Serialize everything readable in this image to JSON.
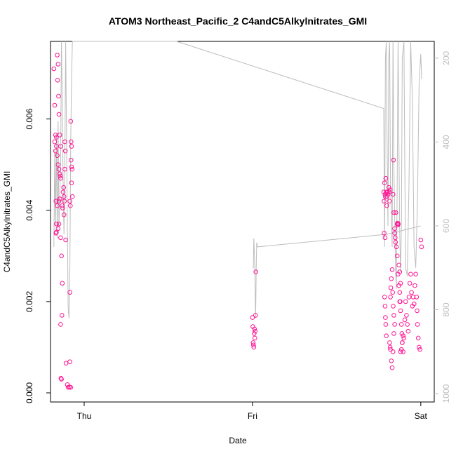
{
  "chart_data": {
    "type": "scatter",
    "title": "ATOM3 Northeast_Pacific_2 C4andC5Alkylnitrates_GMI",
    "xlabel": "Date",
    "ylabel": "C4andC5Alkylnitrates_GMI",
    "x_unit": "days from Thursday 00:00",
    "xlim": [
      -0.2,
      2.08
    ],
    "ylim": [
      -0.0002,
      0.0077
    ],
    "x_ticks": [
      {
        "value": 0,
        "label": "Thu"
      },
      {
        "value": 1,
        "label": "Fri"
      },
      {
        "value": 2,
        "label": "Sat"
      }
    ],
    "y_ticks": [
      {
        "value": 0,
        "label": "0.000"
      },
      {
        "value": 0.002,
        "label": "0.002"
      },
      {
        "value": 0.004,
        "label": "0.004"
      },
      {
        "value": 0.006,
        "label": "0.006"
      }
    ],
    "y2_ticks": [
      {
        "value": 200,
        "label": "200"
      },
      {
        "value": 400,
        "label": "400"
      },
      {
        "value": 600,
        "label": "600"
      },
      {
        "value": 800,
        "label": "800"
      },
      {
        "value": 1000,
        "label": "1000"
      }
    ],
    "y2lim_top_to_bottom": [
      160,
      1020
    ],
    "grid": false,
    "colors": {
      "points": "#ff1493",
      "pressure_line": "#bdbdbd",
      "axes": "#000000"
    },
    "series": [
      {
        "kind": "points",
        "points": [
          [
            -0.18,
            0.0071
          ],
          [
            -0.175,
            0.0063
          ],
          [
            -0.17,
            0.00565
          ],
          [
            -0.175,
            0.0055
          ],
          [
            -0.17,
            0.0053
          ],
          [
            -0.165,
            0.0056
          ],
          [
            -0.16,
            0.0074
          ],
          [
            -0.158,
            0.00685
          ],
          [
            -0.155,
            0.0072
          ],
          [
            -0.152,
            0.0065
          ],
          [
            -0.15,
            0.0061
          ],
          [
            -0.165,
            0.0054
          ],
          [
            -0.16,
            0.0052
          ],
          [
            -0.155,
            0.005
          ],
          [
            -0.15,
            0.0049
          ],
          [
            -0.145,
            0.0048
          ],
          [
            -0.142,
            0.00475
          ],
          [
            -0.14,
            0.0047
          ],
          [
            -0.145,
            0.00565
          ],
          [
            -0.14,
            0.0054
          ],
          [
            -0.168,
            0.0042
          ],
          [
            -0.16,
            0.0041
          ],
          [
            -0.15,
            0.0042
          ],
          [
            -0.145,
            0.00425
          ],
          [
            -0.165,
            0.0037
          ],
          [
            -0.168,
            0.0035
          ],
          [
            -0.165,
            0.00352
          ],
          [
            -0.155,
            0.0036
          ],
          [
            -0.15,
            0.0037
          ],
          [
            -0.14,
            0.0034
          ],
          [
            -0.135,
            0.003
          ],
          [
            -0.13,
            0.0024
          ],
          [
            -0.14,
            0.0015
          ],
          [
            -0.132,
            0.0017
          ],
          [
            -0.138,
            0.00032
          ],
          [
            -0.135,
            0.0003
          ],
          [
            -0.13,
            0.0041
          ],
          [
            -0.128,
            0.00405
          ],
          [
            -0.125,
            0.0044
          ],
          [
            -0.122,
            0.0045
          ],
          [
            -0.12,
            0.0043
          ],
          [
            -0.118,
            0.0042
          ],
          [
            -0.12,
            0.0039
          ],
          [
            -0.115,
            0.0055
          ],
          [
            -0.112,
            0.0053
          ],
          [
            -0.115,
            0.0049
          ],
          [
            -0.11,
            0.00335
          ],
          [
            -0.108,
            0.00065
          ],
          [
            -0.1,
            0.00018
          ],
          [
            -0.095,
            0.00012
          ],
          [
            -0.088,
            0.00013
          ],
          [
            -0.08,
            0.00012
          ],
          [
            -0.085,
            0.00068
          ],
          [
            -0.085,
            0.0022
          ],
          [
            -0.085,
            0.0042
          ],
          [
            -0.082,
            0.0041
          ],
          [
            -0.08,
            0.00595
          ],
          [
            -0.078,
            0.0055
          ],
          [
            -0.075,
            0.0054
          ],
          [
            -0.078,
            0.0051
          ],
          [
            -0.075,
            0.00495
          ],
          [
            -0.072,
            0.0049
          ],
          [
            -0.075,
            0.0046
          ],
          [
            -0.07,
            0.0043
          ],
          [
            1.0,
            0.00165
          ],
          [
            1.002,
            0.00145
          ],
          [
            1.004,
            0.0011
          ],
          [
            1.006,
            0.00105
          ],
          [
            1.008,
            0.001
          ],
          [
            1.01,
            0.0013
          ],
          [
            1.012,
            0.0014
          ],
          [
            1.014,
            0.0012
          ],
          [
            1.016,
            0.00135
          ],
          [
            1.018,
            0.0017
          ],
          [
            1.02,
            0.00265
          ],
          [
            1.78,
            0.0044
          ],
          [
            1.782,
            0.0042
          ],
          [
            1.785,
            0.0046
          ],
          [
            1.788,
            0.00435
          ],
          [
            1.79,
            0.0043
          ],
          [
            1.792,
            0.0047
          ],
          [
            1.795,
            0.0044
          ],
          [
            1.798,
            0.0041
          ],
          [
            1.8,
            0.0043
          ],
          [
            1.802,
            0.0044
          ],
          [
            1.805,
            0.00435
          ],
          [
            1.81,
            0.0045
          ],
          [
            1.812,
            0.0044
          ],
          [
            1.815,
            0.0042
          ],
          [
            1.818,
            0.00445
          ],
          [
            1.782,
            0.0035
          ],
          [
            1.788,
            0.0034
          ],
          [
            1.785,
            0.0021
          ],
          [
            1.788,
            0.0019
          ],
          [
            1.79,
            0.00165
          ],
          [
            1.792,
            0.0015
          ],
          [
            1.795,
            0.00125
          ],
          [
            1.815,
            0.0011
          ],
          [
            1.818,
            0.001
          ],
          [
            1.82,
            0.00095
          ],
          [
            1.825,
            0.0007
          ],
          [
            1.83,
            0.00055
          ],
          [
            1.835,
            0.0009
          ],
          [
            1.84,
            0.0013
          ],
          [
            1.845,
            0.0015
          ],
          [
            1.82,
            0.0021
          ],
          [
            1.822,
            0.0023
          ],
          [
            1.825,
            0.0025
          ],
          [
            1.83,
            0.0027
          ],
          [
            1.833,
            0.0022
          ],
          [
            1.836,
            0.0019
          ],
          [
            1.84,
            0.0017
          ],
          [
            1.835,
            0.00435
          ],
          [
            1.838,
            0.0051
          ],
          [
            1.84,
            0.00395
          ],
          [
            1.845,
            0.0035
          ],
          [
            1.848,
            0.0034
          ],
          [
            1.852,
            0.00395
          ],
          [
            1.855,
            0.0032
          ],
          [
            1.86,
            0.003
          ],
          [
            1.865,
            0.0026
          ],
          [
            1.87,
            0.00235
          ],
          [
            1.875,
            0.0022
          ],
          [
            1.878,
            0.002
          ],
          [
            1.88,
            0.0018
          ],
          [
            1.885,
            0.0015
          ],
          [
            1.888,
            0.0013
          ],
          [
            1.89,
            0.0011
          ],
          [
            1.895,
            0.0009
          ],
          [
            1.9,
            0.0012
          ],
          [
            1.905,
            0.0016
          ],
          [
            1.91,
            0.002
          ],
          [
            1.915,
            0.0017
          ],
          [
            1.92,
            0.0015
          ],
          [
            1.925,
            0.00135
          ],
          [
            1.93,
            0.0021
          ],
          [
            1.935,
            0.0024
          ],
          [
            1.94,
            0.0026
          ],
          [
            1.945,
            0.0022
          ],
          [
            1.95,
            0.0019
          ],
          [
            1.955,
            0.0021
          ],
          [
            1.96,
            0.00195
          ],
          [
            1.965,
            0.00235
          ],
          [
            1.97,
            0.0026
          ],
          [
            1.975,
            0.0021
          ],
          [
            1.978,
            0.0018
          ],
          [
            1.98,
            0.0015
          ],
          [
            1.985,
            0.0012
          ],
          [
            1.99,
            0.001
          ],
          [
            1.995,
            0.00095
          ],
          [
            2.0,
            0.00335
          ],
          [
            2.005,
            0.0032
          ],
          [
            1.86,
            0.0037
          ],
          [
            1.862,
            0.00372
          ],
          [
            1.864,
            0.00368
          ],
          [
            1.866,
            0.0037
          ],
          [
            1.845,
            0.0036
          ],
          [
            1.85,
            0.0033
          ],
          [
            1.87,
            0.0028
          ],
          [
            1.875,
            0.00265
          ],
          [
            1.88,
            0.0009
          ],
          [
            1.885,
            0.00095
          ],
          [
            1.89,
            0.0011
          ],
          [
            1.895,
            0.00125
          ],
          [
            1.88,
            0.0024
          ],
          [
            1.875,
            0.002
          ]
        ]
      },
      {
        "kind": "pressure",
        "points": [
          [
            -0.18,
            650
          ],
          [
            -0.175,
            420
          ],
          [
            -0.17,
            600
          ],
          [
            -0.165,
            380
          ],
          [
            -0.16,
            630
          ],
          [
            -0.155,
            350
          ],
          [
            -0.15,
            600
          ],
          [
            -0.14,
            450
          ],
          [
            -0.135,
            160
          ],
          [
            -0.13,
            300
          ],
          [
            -0.125,
            500
          ],
          [
            -0.12,
            620
          ],
          [
            -0.115,
            450
          ],
          [
            -0.11,
            160
          ],
          [
            -0.1,
            600
          ],
          [
            -0.095,
            800
          ],
          [
            -0.09,
            820
          ],
          [
            -0.085,
            700
          ],
          [
            -0.08,
            400
          ],
          [
            -0.075,
            250
          ],
          [
            -0.07,
            160
          ],
          [
            0.55,
            160
          ],
          [
            1.78,
            320
          ],
          [
            1.785,
            650
          ],
          [
            1.79,
            200
          ],
          [
            1.795,
            160
          ],
          [
            1.8,
            400
          ],
          [
            1.805,
            600
          ],
          [
            1.81,
            200
          ],
          [
            1.815,
            160
          ],
          [
            1.82,
            500
          ],
          [
            1.83,
            650
          ],
          [
            1.835,
            160
          ],
          [
            1.84,
            450
          ],
          [
            1.85,
            700
          ],
          [
            1.855,
            750
          ],
          [
            1.86,
            500
          ],
          [
            1.865,
            160
          ],
          [
            1.87,
            400
          ],
          [
            1.875,
            620
          ],
          [
            1.88,
            710
          ],
          [
            1.885,
            600
          ],
          [
            1.89,
            200
          ],
          [
            1.9,
            160
          ],
          [
            1.905,
            450
          ],
          [
            1.91,
            700
          ],
          [
            1.92,
            720
          ],
          [
            1.93,
            500
          ],
          [
            1.94,
            160
          ],
          [
            1.95,
            300
          ],
          [
            1.96,
            650
          ],
          [
            1.97,
            700
          ],
          [
            1.98,
            550
          ],
          [
            1.99,
            260
          ],
          [
            2.0,
            190
          ],
          [
            2.005,
            250
          ]
        ]
      },
      {
        "kind": "pressure_segment",
        "points": [
          [
            1.0,
            700
          ],
          [
            1.005,
            700
          ],
          [
            1.008,
            630
          ],
          [
            1.01,
            650
          ],
          [
            1.015,
            720
          ],
          [
            1.018,
            820
          ],
          [
            1.02,
            780
          ],
          [
            1.022,
            700
          ],
          [
            1.025,
            640
          ],
          [
            1.03,
            650
          ],
          [
            1.8,
            620
          ],
          [
            2.0,
            600
          ]
        ]
      }
    ]
  }
}
